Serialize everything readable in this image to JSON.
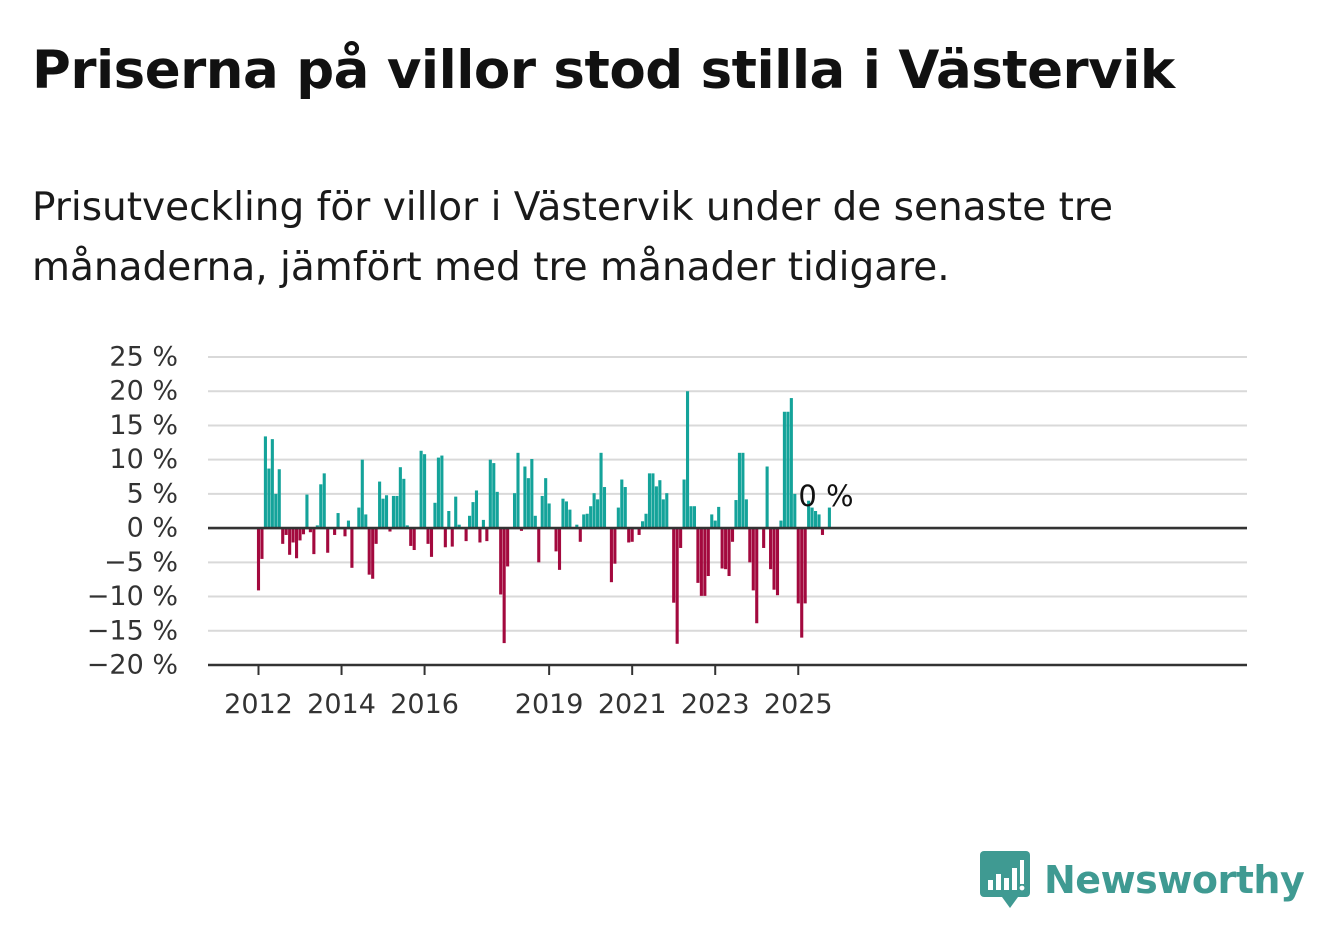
{
  "title": "Priserna på villor stod stilla i Västervik",
  "subtitle": "Prisutveckling för villor i Västervik under de senaste tre månaderna, jämfört med tre månader tidigare.",
  "brand": {
    "name": "Newsworthy",
    "icon": "newsworthy-bar-chart-speech-bubble-icon",
    "color": "#3f9a92"
  },
  "chart_data": {
    "type": "bar",
    "title": "Priserna på villor stod stilla i Västervik",
    "xlabel": "",
    "ylabel": "",
    "ylim": [
      -20,
      25
    ],
    "yticks": [
      25,
      20,
      15,
      10,
      5,
      0,
      -5,
      -10,
      -15,
      -20
    ],
    "ytick_labels": [
      "25 %",
      "20 %",
      "15 %",
      "10 %",
      "5 %",
      "0 %",
      "−5 %",
      "−10 %",
      "−15 %",
      "−20 %"
    ],
    "xticks": [
      2012,
      2014,
      2016,
      2019,
      2021,
      2023,
      2025
    ],
    "x_start": "2012-01",
    "x_end": "2025-12",
    "grid": true,
    "colors": {
      "positive": "#14a39a",
      "negative": "#a3093e",
      "grid": "#d9d9d9",
      "axis": "#333333"
    },
    "series": [
      {
        "values": [
          -9.1,
          -4.5,
          13.4,
          8.7,
          13.0,
          5.0,
          8.6,
          -2.3,
          -1.0,
          -3.9,
          -2.1,
          -4.4,
          -1.8,
          -0.9,
          4.9,
          -0.6,
          -3.8,
          0.4,
          6.4,
          8.0,
          -3.6,
          0,
          -1.0,
          2.2,
          0,
          -1.2,
          1.1,
          -5.8,
          0,
          3.0,
          10.0,
          2.0,
          -6.8,
          -7.4,
          -2.3,
          6.8,
          4.3,
          4.8,
          -0.5,
          4.7,
          4.7,
          8.9,
          7.2,
          0.4,
          -2.6,
          -3.2,
          0,
          11.3,
          10.8,
          -2.3,
          -4.2,
          3.7,
          10.3,
          10.6,
          -2.8,
          2.5,
          -2.7,
          4.6,
          0.5,
          0,
          -1.9,
          1.8,
          3.8,
          5.5,
          -2.1,
          1.2,
          -1.9,
          10.0,
          9.5,
          5.3,
          -9.7,
          -16.8,
          -5.6,
          0,
          5.1,
          11.0,
          -0.4,
          9.0,
          7.3,
          10.1,
          1.8,
          -5.0,
          4.7,
          7.3,
          3.6,
          0,
          -3.4,
          -6.1,
          4.3,
          3.9,
          2.7,
          0,
          0.5,
          -2.0,
          2.0,
          2.1,
          3.2,
          5.1,
          4.2,
          11.0,
          6.0,
          0,
          -7.9,
          -5.2,
          3.0,
          7.1,
          6.0,
          -2.1,
          -2.0,
          0,
          -1.0,
          1.0,
          2.1,
          8.0,
          8.0,
          6.1,
          7.0,
          4.2,
          5.1,
          0,
          -10.9,
          -16.9,
          -2.9,
          7.1,
          20.0,
          3.2,
          3.2,
          -8.0,
          -9.9,
          -9.9,
          -7.0,
          2.0,
          1.1,
          3.1,
          -5.9,
          -6.0,
          -7.0,
          -2.0,
          4.1,
          11.0,
          11.0,
          4.2,
          -5.0,
          -9.1,
          -13.9,
          0,
          -2.9,
          9.0,
          -6.0,
          -9.0,
          -9.8,
          1.1,
          17.0,
          17.0,
          19.0,
          5.0,
          -11.0,
          -16.0,
          -11.0,
          4.0,
          3.0,
          2.5,
          2.0,
          -1.0,
          0,
          3.0,
          0,
          0
        ]
      }
    ],
    "annotations": [
      {
        "text": "0 %",
        "x": "2025-07",
        "y": 0
      }
    ]
  }
}
